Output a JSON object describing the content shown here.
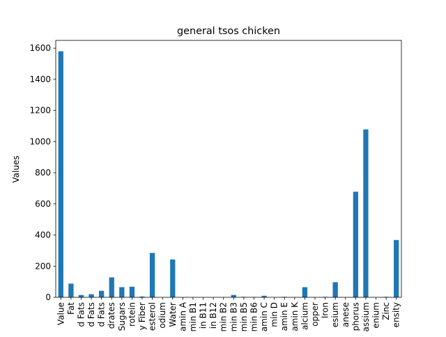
{
  "chart_data": {
    "type": "bar",
    "title": "general tsos chicken",
    "xlabel": "",
    "ylabel": "Values",
    "ylim": [
      0,
      1650
    ],
    "yticks": [
      0,
      200,
      400,
      600,
      800,
      1000,
      1200,
      1400,
      1600
    ],
    "grid": false,
    "legend": "none",
    "bar_color": "#1f77b4",
    "categories": [
      "Value",
      "Fat",
      "d Fats",
      "d Fats",
      "d Fats",
      "drates",
      "Sugars",
      "rotein",
      "y Fiber",
      "esterol",
      "odium",
      "Water",
      "amin A",
      "min B1",
      "in B11",
      "in B12",
      "min B2",
      "min B3",
      "min B5",
      "min B6",
      "amin C",
      "min D",
      "amin E",
      "amin K",
      "alcium",
      "opper",
      "Iron",
      "esium",
      "anese",
      "phorus",
      "assium",
      "enium",
      "Zinc",
      "ensity"
    ],
    "values": [
      1580,
      88,
      15,
      20,
      42,
      128,
      65,
      68,
      5,
      285,
      0,
      243,
      0,
      0,
      0,
      0,
      0,
      15,
      3,
      2,
      10,
      0,
      3,
      0,
      65,
      0,
      3,
      97,
      0,
      678,
      1078,
      0,
      3,
      368
    ]
  }
}
